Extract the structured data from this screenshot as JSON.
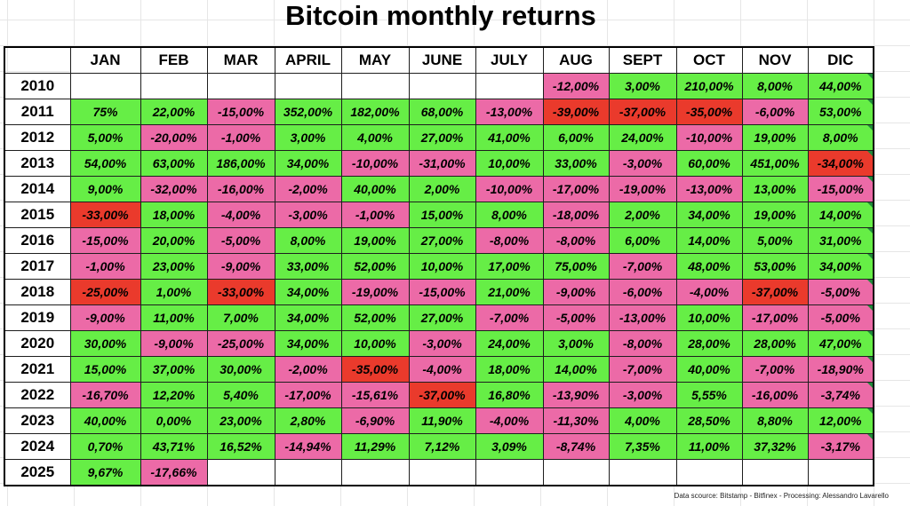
{
  "title": "Bitcoin monthly returns",
  "source": "Data scource: Bitstamp - Bitfinex - Processing: Alessandro Lavarello",
  "colors": {
    "positive": "#66ee46",
    "negative": "#ec6aa7",
    "large_negative": "#ea3a2c",
    "empty": "#ffffff"
  },
  "chart_data": {
    "type": "table",
    "title": "Bitcoin monthly returns",
    "columns": [
      "JAN",
      "FEB",
      "MAR",
      "APRIL",
      "MAY",
      "JUNE",
      "JULY",
      "AUG",
      "SEPT",
      "OCT",
      "NOV",
      "DIC"
    ],
    "rows": [
      {
        "year": "2010",
        "values": [
          "",
          "",
          "",
          "",
          "",
          "",
          "",
          "-12,00%",
          "3,00%",
          "210,00%",
          "8,00%",
          "44,00%"
        ]
      },
      {
        "year": "2011",
        "values": [
          "75%",
          "22,00%",
          "-15,00%",
          "352,00%",
          "182,00%",
          "68,00%",
          "-13,00%",
          "-39,00%",
          "-37,00%",
          "-35,00%",
          "-6,00%",
          "53,00%"
        ]
      },
      {
        "year": "2012",
        "values": [
          "5,00%",
          "-20,00%",
          "-1,00%",
          "3,00%",
          "4,00%",
          "27,00%",
          "41,00%",
          "6,00%",
          "24,00%",
          "-10,00%",
          "19,00%",
          "8,00%"
        ]
      },
      {
        "year": "2013",
        "values": [
          "54,00%",
          "63,00%",
          "186,00%",
          "34,00%",
          "-10,00%",
          "-31,00%",
          "10,00%",
          "33,00%",
          "-3,00%",
          "60,00%",
          "451,00%",
          "-34,00%"
        ]
      },
      {
        "year": "2014",
        "values": [
          "9,00%",
          "-32,00%",
          "-16,00%",
          "-2,00%",
          "40,00%",
          "2,00%",
          "-10,00%",
          "-17,00%",
          "-19,00%",
          "-13,00%",
          "13,00%",
          "-15,00%"
        ]
      },
      {
        "year": "2015",
        "values": [
          "-33,00%",
          "18,00%",
          "-4,00%",
          "-3,00%",
          "-1,00%",
          "15,00%",
          "8,00%",
          "-18,00%",
          "2,00%",
          "34,00%",
          "19,00%",
          "14,00%"
        ]
      },
      {
        "year": "2016",
        "values": [
          "-15,00%",
          "20,00%",
          "-5,00%",
          "8,00%",
          "19,00%",
          "27,00%",
          "-8,00%",
          "-8,00%",
          "6,00%",
          "14,00%",
          "5,00%",
          "31,00%"
        ]
      },
      {
        "year": "2017",
        "values": [
          "-1,00%",
          "23,00%",
          "-9,00%",
          "33,00%",
          "52,00%",
          "10,00%",
          "17,00%",
          "75,00%",
          "-7,00%",
          "48,00%",
          "53,00%",
          "34,00%"
        ]
      },
      {
        "year": "2018",
        "values": [
          "-25,00%",
          "1,00%",
          "-33,00%",
          "34,00%",
          "-19,00%",
          "-15,00%",
          "21,00%",
          "-9,00%",
          "-6,00%",
          "-4,00%",
          "-37,00%",
          "-5,00%"
        ]
      },
      {
        "year": "2019",
        "values": [
          "-9,00%",
          "11,00%",
          "7,00%",
          "34,00%",
          "52,00%",
          "27,00%",
          "-7,00%",
          "-5,00%",
          "-13,00%",
          "10,00%",
          "-17,00%",
          "-5,00%"
        ]
      },
      {
        "year": "2020",
        "values": [
          "30,00%",
          "-9,00%",
          "-25,00%",
          "34,00%",
          "10,00%",
          "-3,00%",
          "24,00%",
          "3,00%",
          "-8,00%",
          "28,00%",
          "28,00%",
          "47,00%"
        ]
      },
      {
        "year": "2021",
        "values": [
          "15,00%",
          "37,00%",
          "30,00%",
          "-2,00%",
          "-35,00%",
          "-4,00%",
          "18,00%",
          "14,00%",
          "-7,00%",
          "40,00%",
          "-7,00%",
          "-18,90%"
        ]
      },
      {
        "year": "2022",
        "values": [
          "-16,70%",
          "12,20%",
          "5,40%",
          "-17,00%",
          "-15,61%",
          "-37,00%",
          "16,80%",
          "-13,90%",
          "-3,00%",
          "5,55%",
          "-16,00%",
          "-3,74%"
        ]
      },
      {
        "year": "2023",
        "values": [
          "40,00%",
          "0,00%",
          "23,00%",
          "2,80%",
          "-6,90%",
          "11,90%",
          "-4,00%",
          "-11,30%",
          "4,00%",
          "28,50%",
          "8,80%",
          "12,00%"
        ]
      },
      {
        "year": "2024",
        "values": [
          "0,70%",
          "43,71%",
          "16,52%",
          "-14,94%",
          "11,29%",
          "7,12%",
          "3,09%",
          "-8,74%",
          "7,35%",
          "11,00%",
          "37,32%",
          "-3,17%"
        ]
      },
      {
        "year": "2025",
        "values": [
          "9,67%",
          "-17,66%",
          "",
          "",
          "",
          "",
          "",
          "",
          "",
          "",
          "",
          ""
        ]
      }
    ],
    "highlighted_cells": [
      {
        "year": "2011",
        "month": "AUG"
      },
      {
        "year": "2011",
        "month": "SEPT"
      },
      {
        "year": "2011",
        "month": "OCT"
      },
      {
        "year": "2013",
        "month": "DIC"
      },
      {
        "year": "2015",
        "month": "JAN"
      },
      {
        "year": "2018",
        "month": "JAN"
      },
      {
        "year": "2018",
        "month": "MAR"
      },
      {
        "year": "2018",
        "month": "NOV"
      },
      {
        "year": "2021",
        "month": "MAY"
      },
      {
        "year": "2022",
        "month": "JUNE"
      }
    ]
  }
}
